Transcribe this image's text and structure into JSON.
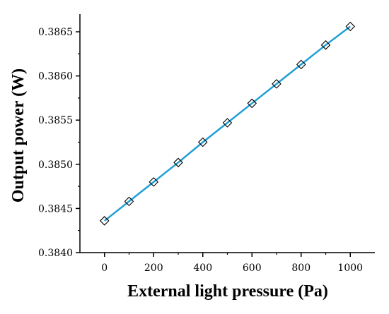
{
  "chart_data": {
    "type": "line",
    "title": "",
    "xlabel": "External light pressure (Pa)",
    "ylabel": "Output power (W)",
    "xlim": [
      -100,
      1100
    ],
    "ylim": [
      0.384,
      0.3867
    ],
    "xticks": [
      0,
      200,
      400,
      600,
      800,
      1000
    ],
    "xtick_labels": [
      "0",
      "200",
      "400",
      "600",
      "800",
      "1000"
    ],
    "yticks": [
      0.384,
      0.3845,
      0.385,
      0.3855,
      0.386,
      0.3865
    ],
    "ytick_labels": [
      "0.3840",
      "0.3845",
      "0.3850",
      "0.3855",
      "0.3860",
      "0.3865"
    ],
    "grid": false,
    "legend": "none",
    "series": [
      {
        "marker": "open-diamond",
        "line_color": "#1f9fd6",
        "marker_color": "#000000",
        "x": [
          0,
          100,
          200,
          300,
          400,
          500,
          600,
          700,
          800,
          900,
          1000
        ],
        "values": [
          0.38436,
          0.38458,
          0.3848,
          0.38502,
          0.38525,
          0.38547,
          0.38569,
          0.38591,
          0.38613,
          0.38635,
          0.38656
        ]
      }
    ]
  }
}
